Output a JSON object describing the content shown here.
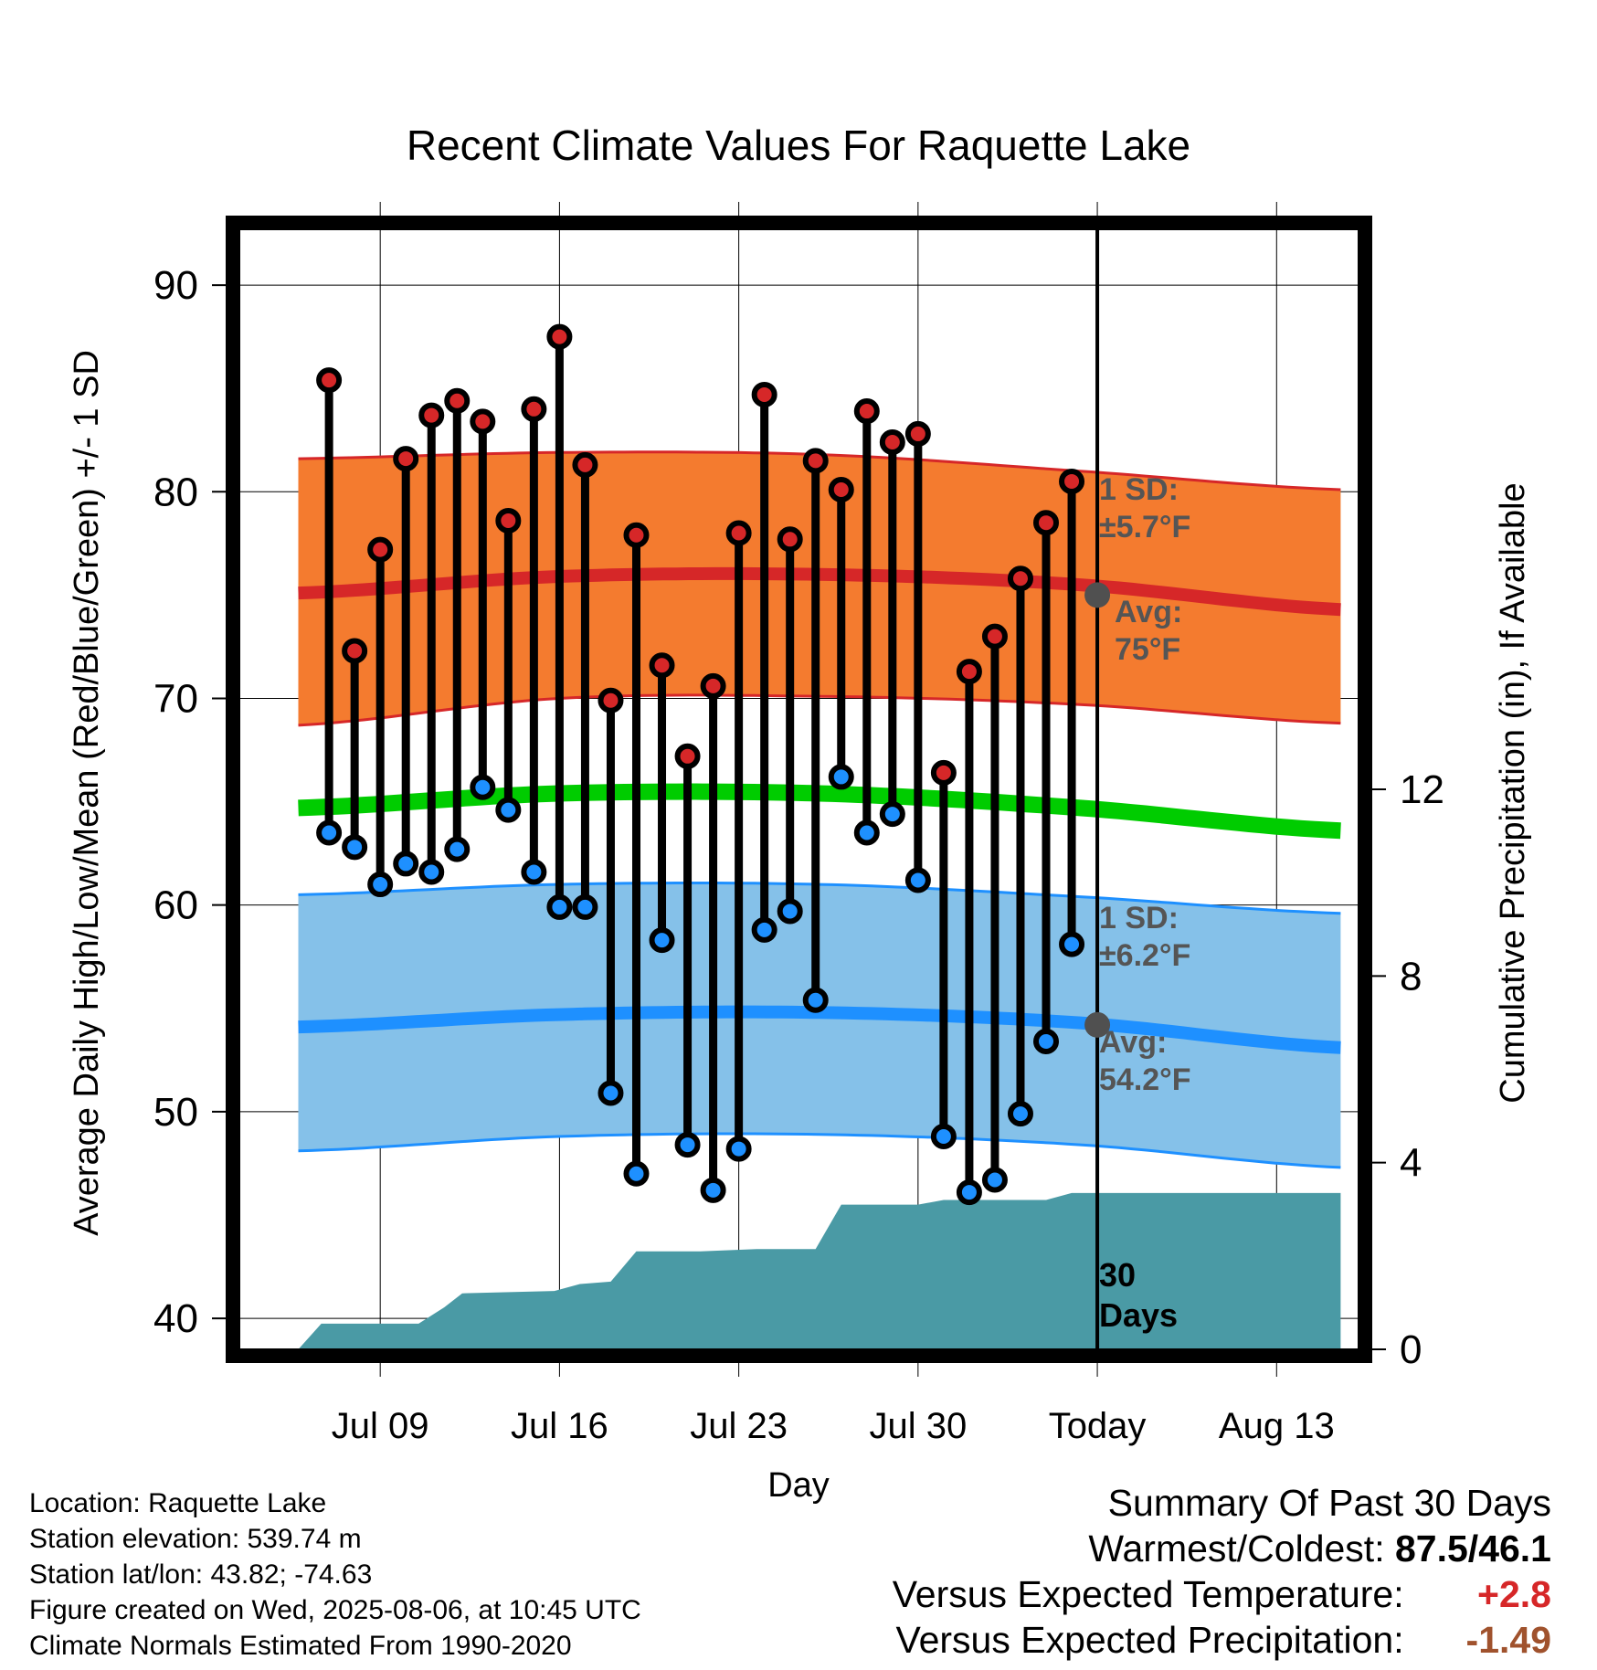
{
  "chart_data": {
    "type": "line",
    "title": "Recent Climate Values For Raquette Lake",
    "xlabel": "Day",
    "ylabel": "Average Daily High/Low/Mean (Red/Blue/Green) +/- 1 SD",
    "y2label": "Cumulative Precipitation (in), If Available",
    "ylim": [
      38.5,
      92.7
    ],
    "y_ticks": [
      "40",
      "50",
      "60",
      "70",
      "80",
      "90"
    ],
    "y2lim": [
      0,
      24
    ],
    "y2_ticks": [
      "0",
      "4",
      "8",
      "12"
    ],
    "x_range_days": [
      -33.5,
      10.2
    ],
    "x_ticks": [
      {
        "day": -28,
        "label": "Jul 09"
      },
      {
        "day": -21,
        "label": "Jul 16"
      },
      {
        "day": -14,
        "label": "Jul 23"
      },
      {
        "day": -7,
        "label": "Jul 30"
      },
      {
        "day": 0,
        "label": "Today"
      },
      {
        "day": 7,
        "label": "Aug 13"
      }
    ],
    "today_day": 0,
    "series": [
      {
        "name": "Daily High",
        "color": "#d62728",
        "days": [
          -30,
          -29,
          -28,
          -27,
          -26,
          -25,
          -24,
          -23,
          -22,
          -21,
          -20,
          -19,
          -18,
          -17,
          -16,
          -15,
          -14,
          -13,
          -12,
          -11,
          -10,
          -9,
          -8,
          -7,
          -6,
          -5,
          -4,
          -3,
          -2,
          -1
        ],
        "values": [
          85.4,
          72.3,
          77.2,
          81.6,
          83.7,
          84.4,
          83.4,
          78.6,
          84.0,
          87.5,
          81.3,
          69.9,
          77.9,
          71.6,
          67.2,
          70.6,
          78.0,
          84.7,
          77.7,
          81.5,
          80.1,
          83.9,
          82.4,
          82.8,
          66.4,
          71.3,
          73.0,
          75.8,
          78.5,
          80.5
        ]
      },
      {
        "name": "Daily Low",
        "color": "#1e90ff",
        "days": [
          -30,
          -29,
          -28,
          -27,
          -26,
          -25,
          -24,
          -23,
          -22,
          -21,
          -20,
          -19,
          -18,
          -17,
          -16,
          -15,
          -14,
          -13,
          -12,
          -11,
          -10,
          -9,
          -8,
          -7,
          -6,
          -5,
          -4,
          -3,
          -2,
          -1
        ],
        "values": [
          63.5,
          62.8,
          61.0,
          62.0,
          61.6,
          62.7,
          65.7,
          64.6,
          61.6,
          59.9,
          59.9,
          50.9,
          47.0,
          58.3,
          48.4,
          46.2,
          48.2,
          58.8,
          59.7,
          55.4,
          66.2,
          63.5,
          64.4,
          61.2,
          48.8,
          46.1,
          46.7,
          49.9,
          53.4,
          58.1
        ]
      }
    ],
    "normals": {
      "day_range": [
        -31.2,
        9.5
      ],
      "high_avg": [
        75.1,
        75.9,
        76.0,
        75.5,
        74.3
      ],
      "high_sd_upper": [
        81.6,
        81.9,
        81.8,
        81.0,
        80.1
      ],
      "high_sd_lower": [
        68.7,
        70.0,
        70.1,
        69.7,
        68.8
      ],
      "mean_avg": [
        64.7,
        65.4,
        65.4,
        64.7,
        63.6
      ],
      "low_avg": [
        54.1,
        54.7,
        54.8,
        54.3,
        53.1
      ],
      "low_sd_upper": [
        60.5,
        61.0,
        61.0,
        60.4,
        59.6
      ],
      "low_sd_lower": [
        48.1,
        48.8,
        48.9,
        48.4,
        47.3
      ]
    },
    "precipitation": {
      "name": "Cumulative Precipitation",
      "color": "#4a9aa5",
      "days": [
        -31.2,
        -30.3,
        -26.5,
        -25.5,
        -24.8,
        -21.2,
        -20.2,
        -19.0,
        -18.0,
        -17.0,
        -15.5,
        -13.3,
        -11.0,
        -10.0,
        -9.0,
        -7.0,
        -6.0,
        -5.0,
        -3.5,
        -2.0,
        -1.0,
        0.0,
        9.5
      ],
      "values": [
        0,
        0.55,
        0.55,
        0.9,
        1.2,
        1.25,
        1.4,
        1.45,
        2.1,
        2.1,
        2.1,
        2.15,
        2.15,
        3.1,
        3.1,
        3.1,
        3.2,
        3.2,
        3.2,
        3.2,
        3.35,
        3.35,
        3.35
      ]
    },
    "annotations": {
      "high_sd_label": "1 SD:",
      "high_sd_value": "±5.7°F",
      "high_avg_label": "Avg:",
      "high_avg_value": "75°F",
      "low_sd_label": "1 SD:",
      "low_sd_value": "±6.2°F",
      "low_avg_label": "Avg:",
      "low_avg_value": "54.2°F",
      "window_label_1": "30",
      "window_label_2": "Days"
    },
    "grid": true
  },
  "info": {
    "location": "Location: Raquette Lake",
    "elevation": "Station elevation: 539.74 m",
    "latlon": "Station lat/lon: 43.82; -74.63",
    "created": "Figure created on Wed, 2025-08-06, at 10:45 UTC",
    "normals": "Climate Normals Estimated From 1990-2020"
  },
  "summary": {
    "title": "Summary Of Past 30 Days",
    "warm_cold_label": "Warmest/Coldest:",
    "warm_cold_value": "87.5/46.1",
    "temp_label": "Versus Expected Temperature:",
    "temp_value": "+2.8",
    "temp_color": "#d62728",
    "precip_label": "Versus Expected Precipitation:",
    "precip_value": "-1.49",
    "precip_color": "#a0522d"
  },
  "colors": {
    "high_band": "#f47b2f",
    "high_line": "#d62728",
    "low_band": "#85c1e9",
    "low_line": "#1e90ff",
    "mean_line": "#00cc00",
    "marker_point": "#505050"
  }
}
